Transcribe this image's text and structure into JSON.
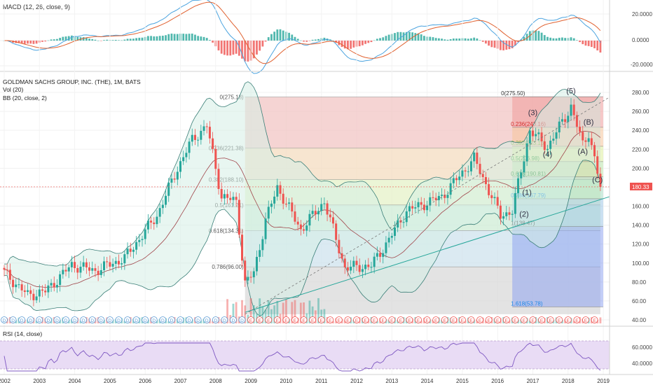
{
  "macd_panel": {
    "title": "MACD (12, 26, close, 9)",
    "ticks": [
      "20.0000",
      "0.0000",
      "-20.0000"
    ]
  },
  "main_panel": {
    "title": "GOLDMAN SACHS GROUP, INC. (THE), 1M, BATS",
    "vol_label": "Vol (20)",
    "bb_label": "BB (20, close, 2)",
    "price_ticks": [
      "280.00",
      "260.00",
      "240.00",
      "220.00",
      "200.00",
      "180.00",
      "160.00",
      "140.00",
      "120.00",
      "100.00",
      "80.00",
      "60.00",
      "40.00"
    ],
    "last_price": "180.33"
  },
  "rsi_panel": {
    "title": "RSI (14, close)",
    "ticks": [
      "60.0000",
      "40.0000"
    ]
  },
  "x_axis": {
    "labels": [
      "2002",
      "2003",
      "2004",
      "2005",
      "2006",
      "2007",
      "2008",
      "2009",
      "2010",
      "2011",
      "2012",
      "2013",
      "2014",
      "2015",
      "2016",
      "2017",
      "2018",
      "2019"
    ]
  },
  "fib_left": {
    "levels": [
      "0(275.18)",
      "0.236(221.38)",
      "0.382(188.10)",
      "0.5(161.21)",
      "0.618(134.31)",
      "0.786(96.00)"
    ],
    "level_values": [
      275.18,
      221.38,
      188.1,
      161.21,
      134.31,
      96.0
    ],
    "label_positions": [
      "top",
      "partial",
      "partial",
      "partial",
      "partial",
      "partial"
    ]
  },
  "fib_right": {
    "levels": [
      "0(275.50)",
      "0.236(243.16)",
      "0.382(223.15)",
      "0.5(206.98)",
      "0.618(190.81)",
      "0.786(167.79)",
      "1(138.47)",
      "1.618(53.78)"
    ],
    "level_values": [
      275.5,
      243.16,
      223.15,
      206.98,
      190.81,
      167.79,
      138.47,
      53.78
    ]
  },
  "wave_labels": [
    "(1)",
    "(2)",
    "(3)",
    "(4)",
    "(5)",
    "(A)",
    "(B)",
    "(C)"
  ],
  "event_markers": {
    "dividend": "D",
    "earnings": "E"
  },
  "colors": {
    "up": "#26a69a",
    "down": "#ef5350",
    "bb_fill": "#d5efe6",
    "fib_red": "#f2c6c4",
    "fib_blue": "#6f8cf2",
    "rsi_band": "#e9dcf5"
  },
  "chart_data": {
    "type": "candlestick",
    "symbol": "GOLDMAN SACHS GROUP, INC. (THE)",
    "interval": "1M",
    "x": [
      "2002",
      "2003",
      "2004",
      "2005",
      "2006",
      "2007",
      "2008",
      "2009",
      "2010",
      "2011",
      "2012",
      "2013",
      "2014",
      "2015",
      "2016",
      "2017",
      "2018",
      "2019"
    ],
    "close_anchor_points": [
      {
        "date": "2002-01",
        "close": 90
      },
      {
        "date": "2002-09",
        "close": 66
      },
      {
        "date": "2003-03",
        "close": 70
      },
      {
        "date": "2003-12",
        "close": 98
      },
      {
        "date": "2004-08",
        "close": 92
      },
      {
        "date": "2005-06",
        "close": 105
      },
      {
        "date": "2006-05",
        "close": 150
      },
      {
        "date": "2006-12",
        "close": 200
      },
      {
        "date": "2007-05",
        "close": 230
      },
      {
        "date": "2007-10",
        "close": 245
      },
      {
        "date": "2008-03",
        "close": 170
      },
      {
        "date": "2008-08",
        "close": 165
      },
      {
        "date": "2008-11",
        "close": 78
      },
      {
        "date": "2009-02",
        "close": 90
      },
      {
        "date": "2009-06",
        "close": 145
      },
      {
        "date": "2009-10",
        "close": 180
      },
      {
        "date": "2010-06",
        "close": 135
      },
      {
        "date": "2011-02",
        "close": 165
      },
      {
        "date": "2011-09",
        "close": 95
      },
      {
        "date": "2012-06",
        "close": 97
      },
      {
        "date": "2012-12",
        "close": 125
      },
      {
        "date": "2013-06",
        "close": 155
      },
      {
        "date": "2014-06",
        "close": 170
      },
      {
        "date": "2015-05",
        "close": 210
      },
      {
        "date": "2016-02",
        "close": 150
      },
      {
        "date": "2016-06",
        "close": 155
      },
      {
        "date": "2016-12",
        "close": 240
      },
      {
        "date": "2017-06",
        "close": 222
      },
      {
        "date": "2018-02",
        "close": 265
      },
      {
        "date": "2018-06",
        "close": 225
      },
      {
        "date": "2018-08",
        "close": 238
      },
      {
        "date": "2018-12",
        "close": 180.33
      }
    ],
    "ylim": [
      40,
      285
    ],
    "last_price": 180.33
  }
}
